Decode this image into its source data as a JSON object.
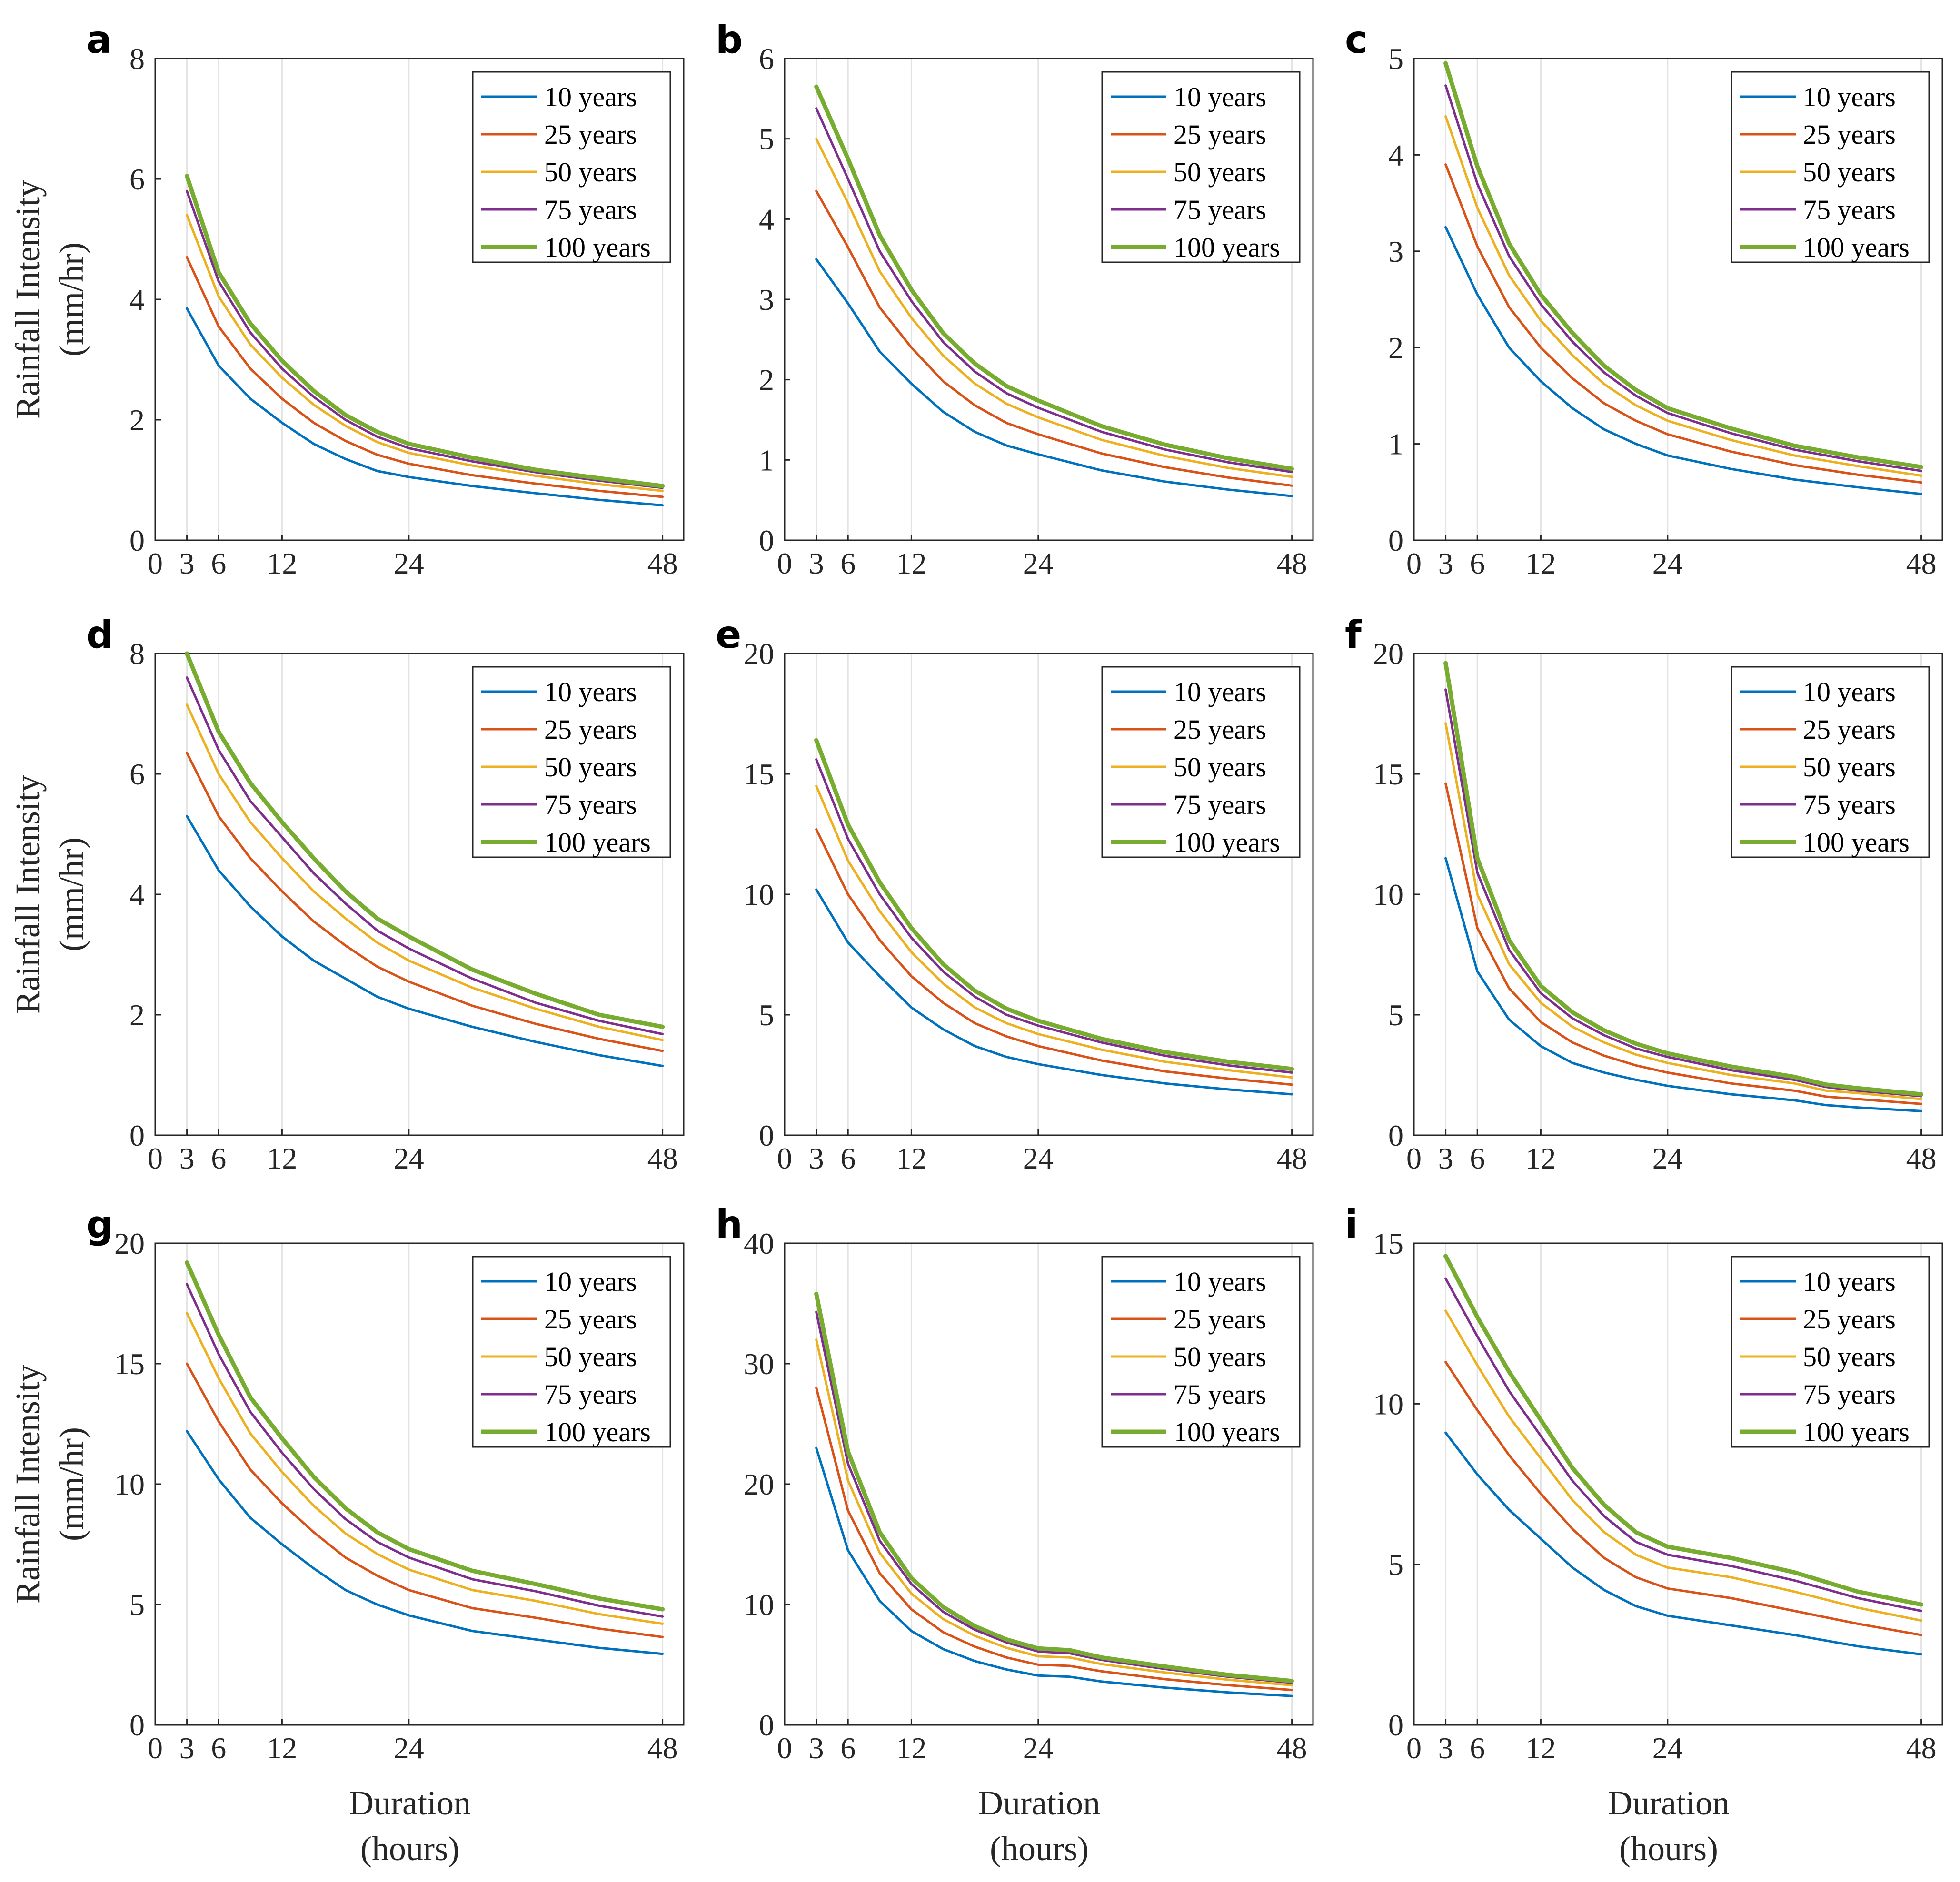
{
  "figure": {
    "y_axis_title_lines": [
      "Rainfall Intensity",
      "(mm/hr)"
    ],
    "x_axis_title_lines": [
      "Duration",
      "(hours)"
    ]
  },
  "legend": {
    "entries": [
      "10 years",
      "25 years",
      "50 years",
      "75 years",
      "100 years"
    ],
    "colors": [
      "#0072BD",
      "#D95319",
      "#EDB120",
      "#7E2F8E",
      "#77AC30"
    ]
  },
  "chart_data": [
    {
      "type": "line",
      "panel": "a",
      "title": "",
      "xlabel": "",
      "ylabel": "",
      "x": [
        3,
        6,
        9,
        12,
        15,
        18,
        21,
        24,
        30,
        36,
        42,
        48
      ],
      "xticks": [
        0,
        3,
        6,
        12,
        24,
        48
      ],
      "xlim": [
        0,
        50
      ],
      "yticks": [
        0,
        2,
        4,
        6,
        8
      ],
      "ylim": [
        0,
        8
      ],
      "series": [
        {
          "name": "10 years",
          "values": [
            3.85,
            2.9,
            2.35,
            1.95,
            1.6,
            1.35,
            1.15,
            1.05,
            0.9,
            0.78,
            0.67,
            0.58
          ]
        },
        {
          "name": "25 years",
          "values": [
            4.7,
            3.55,
            2.85,
            2.35,
            1.95,
            1.65,
            1.42,
            1.27,
            1.08,
            0.94,
            0.82,
            0.72
          ]
        },
        {
          "name": "50 years",
          "values": [
            5.4,
            4.05,
            3.25,
            2.7,
            2.25,
            1.9,
            1.63,
            1.45,
            1.24,
            1.07,
            0.93,
            0.82
          ]
        },
        {
          "name": "75 years",
          "values": [
            5.8,
            4.3,
            3.45,
            2.85,
            2.38,
            2.0,
            1.72,
            1.53,
            1.31,
            1.13,
            0.99,
            0.87
          ]
        },
        {
          "name": "100 years",
          "values": [
            6.05,
            4.45,
            3.6,
            2.98,
            2.48,
            2.08,
            1.8,
            1.6,
            1.37,
            1.17,
            1.03,
            0.9
          ]
        }
      ]
    },
    {
      "type": "line",
      "panel": "b",
      "title": "",
      "xlabel": "",
      "ylabel": "",
      "x": [
        3,
        6,
        9,
        12,
        15,
        18,
        21,
        24,
        30,
        36,
        42,
        48
      ],
      "xticks": [
        0,
        3,
        6,
        12,
        24,
        48
      ],
      "xlim": [
        0,
        50
      ],
      "yticks": [
        0,
        1,
        2,
        3,
        4,
        5,
        6
      ],
      "ylim": [
        0,
        6
      ],
      "series": [
        {
          "name": "10 years",
          "values": [
            3.5,
            2.95,
            2.35,
            1.95,
            1.6,
            1.35,
            1.18,
            1.07,
            0.87,
            0.73,
            0.63,
            0.55
          ]
        },
        {
          "name": "25 years",
          "values": [
            4.35,
            3.65,
            2.9,
            2.4,
            1.98,
            1.68,
            1.46,
            1.32,
            1.08,
            0.91,
            0.78,
            0.68
          ]
        },
        {
          "name": "50 years",
          "values": [
            5.0,
            4.2,
            3.35,
            2.77,
            2.3,
            1.95,
            1.7,
            1.53,
            1.25,
            1.05,
            0.9,
            0.79
          ]
        },
        {
          "name": "75 years",
          "values": [
            5.38,
            4.5,
            3.6,
            2.98,
            2.47,
            2.1,
            1.83,
            1.65,
            1.35,
            1.13,
            0.97,
            0.85
          ]
        },
        {
          "name": "100 years",
          "values": [
            5.65,
            4.75,
            3.8,
            3.12,
            2.58,
            2.2,
            1.92,
            1.74,
            1.42,
            1.19,
            1.02,
            0.89
          ]
        }
      ]
    },
    {
      "type": "line",
      "panel": "c",
      "title": "",
      "xlabel": "",
      "ylabel": "",
      "x": [
        3,
        6,
        9,
        12,
        15,
        18,
        21,
        24,
        30,
        36,
        42,
        48
      ],
      "xticks": [
        0,
        3,
        6,
        12,
        24,
        48
      ],
      "xlim": [
        0,
        50
      ],
      "yticks": [
        0,
        1,
        2,
        3,
        4,
        5
      ],
      "ylim": [
        0,
        5
      ],
      "series": [
        {
          "name": "10 years",
          "values": [
            3.25,
            2.55,
            2.0,
            1.65,
            1.37,
            1.15,
            1.0,
            0.88,
            0.74,
            0.63,
            0.55,
            0.48
          ]
        },
        {
          "name": "25 years",
          "values": [
            3.9,
            3.05,
            2.42,
            2.0,
            1.68,
            1.42,
            1.24,
            1.1,
            0.92,
            0.78,
            0.68,
            0.6
          ]
        },
        {
          "name": "50 years",
          "values": [
            4.4,
            3.45,
            2.75,
            2.28,
            1.92,
            1.62,
            1.4,
            1.24,
            1.04,
            0.88,
            0.77,
            0.67
          ]
        },
        {
          "name": "75 years",
          "values": [
            4.72,
            3.7,
            2.95,
            2.45,
            2.06,
            1.74,
            1.5,
            1.32,
            1.11,
            0.94,
            0.82,
            0.72
          ]
        },
        {
          "name": "100 years",
          "values": [
            4.95,
            3.88,
            3.08,
            2.55,
            2.15,
            1.81,
            1.56,
            1.37,
            1.16,
            0.98,
            0.86,
            0.76
          ]
        }
      ]
    },
    {
      "type": "line",
      "panel": "d",
      "title": "",
      "xlabel": "",
      "ylabel": "",
      "x": [
        3,
        6,
        9,
        12,
        15,
        18,
        21,
        24,
        30,
        36,
        42,
        48
      ],
      "xticks": [
        0,
        3,
        6,
        12,
        24,
        48
      ],
      "xlim": [
        0,
        50
      ],
      "yticks": [
        0,
        2,
        4,
        6,
        8
      ],
      "ylim": [
        0,
        8
      ],
      "series": [
        {
          "name": "10 years",
          "values": [
            5.3,
            4.4,
            3.8,
            3.3,
            2.9,
            2.6,
            2.3,
            2.1,
            1.8,
            1.55,
            1.33,
            1.15
          ]
        },
        {
          "name": "25 years",
          "values": [
            6.35,
            5.3,
            4.6,
            4.05,
            3.55,
            3.15,
            2.8,
            2.55,
            2.15,
            1.85,
            1.6,
            1.4
          ]
        },
        {
          "name": "50 years",
          "values": [
            7.15,
            6.0,
            5.2,
            4.6,
            4.05,
            3.6,
            3.2,
            2.9,
            2.45,
            2.1,
            1.8,
            1.58
          ]
        },
        {
          "name": "75 years",
          "values": [
            7.6,
            6.4,
            5.55,
            4.95,
            4.35,
            3.85,
            3.4,
            3.1,
            2.6,
            2.2,
            1.9,
            1.68
          ]
        },
        {
          "name": "100 years",
          "values": [
            8.0,
            6.7,
            5.85,
            5.2,
            4.6,
            4.05,
            3.6,
            3.3,
            2.75,
            2.35,
            2.0,
            1.8
          ]
        }
      ]
    },
    {
      "type": "line",
      "panel": "e",
      "title": "",
      "xlabel": "",
      "ylabel": "",
      "x": [
        3,
        6,
        9,
        12,
        15,
        18,
        21,
        24,
        30,
        36,
        42,
        48
      ],
      "xticks": [
        0,
        3,
        6,
        12,
        24,
        48
      ],
      "xlim": [
        0,
        50
      ],
      "yticks": [
        0,
        5,
        10,
        15,
        20
      ],
      "ylim": [
        0,
        20
      ],
      "series": [
        {
          "name": "10 years",
          "values": [
            10.2,
            8.0,
            6.6,
            5.3,
            4.4,
            3.7,
            3.25,
            2.95,
            2.5,
            2.15,
            1.9,
            1.7
          ]
        },
        {
          "name": "25 years",
          "values": [
            12.7,
            10.0,
            8.1,
            6.6,
            5.5,
            4.65,
            4.1,
            3.7,
            3.1,
            2.65,
            2.35,
            2.1
          ]
        },
        {
          "name": "50 years",
          "values": [
            14.5,
            11.4,
            9.3,
            7.6,
            6.3,
            5.3,
            4.65,
            4.2,
            3.55,
            3.05,
            2.7,
            2.4
          ]
        },
        {
          "name": "75 years",
          "values": [
            15.6,
            12.3,
            10.0,
            8.2,
            6.8,
            5.75,
            5.0,
            4.55,
            3.85,
            3.3,
            2.9,
            2.6
          ]
        },
        {
          "name": "100 years",
          "values": [
            16.4,
            12.9,
            10.5,
            8.6,
            7.1,
            6.0,
            5.25,
            4.75,
            4.0,
            3.45,
            3.05,
            2.75
          ]
        }
      ]
    },
    {
      "type": "line",
      "panel": "f",
      "title": "",
      "xlabel": "",
      "ylabel": "",
      "x": [
        3,
        6,
        9,
        12,
        15,
        18,
        21,
        24,
        30,
        36,
        39,
        42,
        48
      ],
      "xticks": [
        0,
        3,
        6,
        12,
        24,
        48
      ],
      "xlim": [
        0,
        50
      ],
      "yticks": [
        0,
        5,
        10,
        15,
        20
      ],
      "ylim": [
        0,
        20
      ],
      "series": [
        {
          "name": "10 years",
          "values": [
            11.5,
            6.8,
            4.8,
            3.7,
            3.0,
            2.6,
            2.3,
            2.05,
            1.7,
            1.45,
            1.25,
            1.15,
            1.0
          ]
        },
        {
          "name": "25 years",
          "values": [
            14.6,
            8.6,
            6.1,
            4.7,
            3.85,
            3.3,
            2.9,
            2.6,
            2.15,
            1.85,
            1.6,
            1.5,
            1.3
          ]
        },
        {
          "name": "50 years",
          "values": [
            17.1,
            10.0,
            7.1,
            5.5,
            4.5,
            3.85,
            3.35,
            3.0,
            2.5,
            2.15,
            1.85,
            1.75,
            1.5
          ]
        },
        {
          "name": "75 years",
          "values": [
            18.5,
            10.9,
            7.7,
            5.9,
            4.85,
            4.15,
            3.6,
            3.25,
            2.7,
            2.3,
            2.0,
            1.85,
            1.62
          ]
        },
        {
          "name": "100 years",
          "values": [
            19.6,
            11.5,
            8.1,
            6.2,
            5.1,
            4.35,
            3.8,
            3.4,
            2.85,
            2.42,
            2.1,
            1.95,
            1.7
          ]
        }
      ]
    },
    {
      "type": "line",
      "panel": "g",
      "title": "",
      "xlabel": "",
      "ylabel": "",
      "x": [
        3,
        6,
        9,
        12,
        15,
        18,
        21,
        24,
        30,
        36,
        42,
        48
      ],
      "xticks": [
        0,
        3,
        6,
        12,
        24,
        48
      ],
      "xlim": [
        0,
        50
      ],
      "yticks": [
        0,
        5,
        10,
        15,
        20
      ],
      "ylim": [
        0,
        20
      ],
      "series": [
        {
          "name": "10 years",
          "values": [
            12.2,
            10.2,
            8.6,
            7.5,
            6.5,
            5.6,
            5.0,
            4.55,
            3.9,
            3.55,
            3.2,
            2.95
          ]
        },
        {
          "name": "25 years",
          "values": [
            15.0,
            12.6,
            10.6,
            9.2,
            8.0,
            6.95,
            6.2,
            5.6,
            4.85,
            4.45,
            4.0,
            3.65
          ]
        },
        {
          "name": "50 years",
          "values": [
            17.1,
            14.4,
            12.1,
            10.5,
            9.1,
            7.95,
            7.1,
            6.45,
            5.6,
            5.15,
            4.6,
            4.2
          ]
        },
        {
          "name": "75 years",
          "values": [
            18.3,
            15.4,
            13.0,
            11.3,
            9.8,
            8.55,
            7.6,
            6.95,
            6.05,
            5.55,
            4.95,
            4.5
          ]
        },
        {
          "name": "100 years",
          "values": [
            19.2,
            16.2,
            13.6,
            11.9,
            10.3,
            9.0,
            8.0,
            7.3,
            6.4,
            5.85,
            5.25,
            4.8
          ]
        }
      ]
    },
    {
      "type": "line",
      "panel": "h",
      "title": "",
      "xlabel": "",
      "ylabel": "",
      "x": [
        3,
        6,
        9,
        12,
        15,
        18,
        21,
        24,
        27,
        30,
        36,
        42,
        48
      ],
      "xticks": [
        0,
        3,
        6,
        12,
        24,
        48
      ],
      "xlim": [
        0,
        50
      ],
      "yticks": [
        0,
        10,
        20,
        30,
        40
      ],
      "ylim": [
        0,
        40
      ],
      "series": [
        {
          "name": "10 years",
          "values": [
            23.0,
            14.5,
            10.3,
            7.8,
            6.3,
            5.3,
            4.6,
            4.1,
            4.0,
            3.6,
            3.1,
            2.7,
            2.4
          ]
        },
        {
          "name": "25 years",
          "values": [
            28.0,
            17.8,
            12.6,
            9.6,
            7.7,
            6.5,
            5.6,
            5.0,
            4.9,
            4.45,
            3.8,
            3.3,
            2.9
          ]
        },
        {
          "name": "50 years",
          "values": [
            32.0,
            20.3,
            14.3,
            10.9,
            8.8,
            7.4,
            6.4,
            5.7,
            5.6,
            5.05,
            4.35,
            3.75,
            3.3
          ]
        },
        {
          "name": "75 years",
          "values": [
            34.3,
            21.7,
            15.3,
            11.7,
            9.4,
            7.9,
            6.85,
            6.1,
            5.95,
            5.4,
            4.65,
            4.0,
            3.5
          ]
        },
        {
          "name": "100 years",
          "values": [
            35.8,
            22.7,
            16.0,
            12.2,
            9.8,
            8.2,
            7.1,
            6.35,
            6.2,
            5.6,
            4.85,
            4.15,
            3.65
          ]
        }
      ]
    },
    {
      "type": "line",
      "panel": "i",
      "title": "",
      "xlabel": "",
      "ylabel": "",
      "x": [
        3,
        6,
        9,
        12,
        15,
        18,
        21,
        24,
        30,
        36,
        42,
        48
      ],
      "xticks": [
        0,
        3,
        6,
        12,
        24,
        48
      ],
      "xlim": [
        0,
        50
      ],
      "yticks": [
        0,
        5,
        10,
        15
      ],
      "ylim": [
        0,
        15
      ],
      "series": [
        {
          "name": "10 years",
          "values": [
            9.1,
            7.8,
            6.7,
            5.8,
            4.9,
            4.2,
            3.7,
            3.4,
            3.1,
            2.8,
            2.45,
            2.2
          ]
        },
        {
          "name": "25 years",
          "values": [
            11.3,
            9.8,
            8.4,
            7.2,
            6.1,
            5.2,
            4.6,
            4.25,
            3.95,
            3.55,
            3.15,
            2.8
          ]
        },
        {
          "name": "50 years",
          "values": [
            12.9,
            11.2,
            9.6,
            8.3,
            7.0,
            6.0,
            5.3,
            4.9,
            4.6,
            4.15,
            3.65,
            3.25
          ]
        },
        {
          "name": "75 years",
          "values": [
            13.9,
            12.1,
            10.4,
            9.0,
            7.6,
            6.5,
            5.7,
            5.3,
            4.95,
            4.5,
            3.95,
            3.55
          ]
        },
        {
          "name": "100 years",
          "values": [
            14.6,
            12.7,
            11.0,
            9.5,
            8.0,
            6.85,
            6.0,
            5.55,
            5.2,
            4.75,
            4.15,
            3.75
          ]
        }
      ]
    }
  ]
}
